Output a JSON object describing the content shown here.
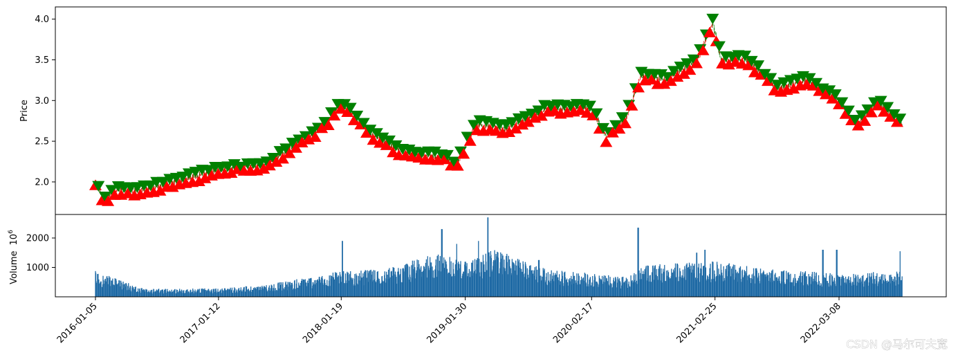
{
  "chart_data": [
    {
      "type": "candlestick",
      "ylabel": "Price",
      "ylim": [
        1.6,
        4.15
      ],
      "yticks": [
        "2.0",
        "2.5",
        "3.0",
        "3.5",
        "4.0"
      ],
      "colors": {
        "up": "#ff0000",
        "down": "#008000",
        "buy_marker": "#ff0000",
        "sell_marker": "#008000"
      },
      "markers": {
        "buy": "triangle-up",
        "sell": "triangle-down"
      },
      "price_path_keypoints": [
        {
          "date": "2016-01-05",
          "close": 2.0
        },
        {
          "date": "2016-02-01",
          "close": 1.75
        },
        {
          "date": "2016-03-01",
          "close": 1.9
        },
        {
          "date": "2016-06-01",
          "close": 1.9
        },
        {
          "date": "2016-09-01",
          "close": 2.0
        },
        {
          "date": "2017-01-12",
          "close": 2.15
        },
        {
          "date": "2017-06-01",
          "close": 2.2
        },
        {
          "date": "2017-09-01",
          "close": 2.45
        },
        {
          "date": "2017-12-01",
          "close": 2.7
        },
        {
          "date": "2018-01-19",
          "close": 2.97
        },
        {
          "date": "2018-05-01",
          "close": 2.55
        },
        {
          "date": "2018-08-01",
          "close": 2.35
        },
        {
          "date": "2018-12-01",
          "close": 2.3
        },
        {
          "date": "2019-01-01",
          "close": 2.2
        },
        {
          "date": "2019-03-01",
          "close": 2.7
        },
        {
          "date": "2019-06-01",
          "close": 2.65
        },
        {
          "date": "2019-10-01",
          "close": 2.9
        },
        {
          "date": "2020-02-17",
          "close": 2.9
        },
        {
          "date": "2020-04-01",
          "close": 2.55
        },
        {
          "date": "2020-06-01",
          "close": 2.8
        },
        {
          "date": "2020-07-15",
          "close": 3.3
        },
        {
          "date": "2020-10-01",
          "close": 3.25
        },
        {
          "date": "2021-01-01",
          "close": 3.5
        },
        {
          "date": "2021-02-18",
          "close": 3.95
        },
        {
          "date": "2021-03-15",
          "close": 3.5
        },
        {
          "date": "2021-06-01",
          "close": 3.5
        },
        {
          "date": "2021-09-01",
          "close": 3.15
        },
        {
          "date": "2021-12-01",
          "close": 3.25
        },
        {
          "date": "2022-03-08",
          "close": 3.0
        },
        {
          "date": "2022-05-01",
          "close": 2.7
        },
        {
          "date": "2022-07-01",
          "close": 3.0
        },
        {
          "date": "2022-09-15",
          "close": 2.7
        }
      ],
      "date_range": [
        "2016-01-05",
        "2022-09-15"
      ]
    },
    {
      "type": "bar",
      "ylabel": "Volume",
      "ylabel_exponent_base": "10",
      "ylabel_exponent_power": "6",
      "ylim": [
        0,
        2800
      ],
      "yticks": [
        "1000",
        "2000"
      ],
      "color": "#1f6aa5",
      "volume_profile_keypoints": [
        {
          "date": "2016-01-05",
          "volume": 650
        },
        {
          "date": "2016-06-01",
          "volume": 200
        },
        {
          "date": "2017-01-12",
          "volume": 220
        },
        {
          "date": "2017-06-01",
          "volume": 300
        },
        {
          "date": "2018-01-19",
          "volume": 650
        },
        {
          "date": "2018-06-01",
          "volume": 700
        },
        {
          "date": "2018-11-01",
          "volume": 1100
        },
        {
          "date": "2019-01-30",
          "volume": 900
        },
        {
          "date": "2019-05-01",
          "volume": 1200
        },
        {
          "date": "2019-10-01",
          "volume": 700
        },
        {
          "date": "2020-02-17",
          "volume": 600
        },
        {
          "date": "2020-06-01",
          "volume": 500
        },
        {
          "date": "2020-08-01",
          "volume": 800
        },
        {
          "date": "2021-02-25",
          "volume": 900
        },
        {
          "date": "2021-08-01",
          "volume": 700
        },
        {
          "date": "2022-03-08",
          "volume": 600
        },
        {
          "date": "2022-09-15",
          "volume": 650
        }
      ],
      "volume_spikes": [
        {
          "date": "2018-01-22",
          "volume": 1900
        },
        {
          "date": "2018-11-20",
          "volume": 2300
        },
        {
          "date": "2019-01-05",
          "volume": 1800
        },
        {
          "date": "2019-04-08",
          "volume": 2700
        },
        {
          "date": "2019-03-10",
          "volume": 1900
        },
        {
          "date": "2019-09-10",
          "volume": 1250
        },
        {
          "date": "2020-07-07",
          "volume": 2350
        },
        {
          "date": "2021-01-25",
          "volume": 1600
        },
        {
          "date": "2021-01-01",
          "volume": 1500
        },
        {
          "date": "2022-01-18",
          "volume": 1600
        },
        {
          "date": "2022-03-01",
          "volume": 1600
        },
        {
          "date": "2022-09-10",
          "volume": 1550
        }
      ]
    }
  ],
  "xaxis": {
    "ticks": [
      "2016-01-05",
      "2017-01-12",
      "2018-01-19",
      "2019-01-30",
      "2020-02-17",
      "2021-02-25",
      "2022-03-08"
    ],
    "rotation_deg": 45
  },
  "watermark": "CSDN @马尔可夫宽"
}
